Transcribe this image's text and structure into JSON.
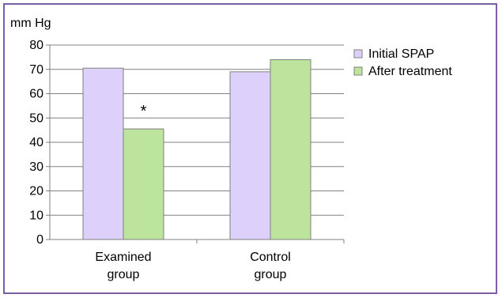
{
  "chart_data": {
    "type": "bar",
    "ylabel": "mm Hg",
    "categories": [
      [
        "Examined",
        "group"
      ],
      [
        "Control",
        "group"
      ]
    ],
    "series": [
      {
        "name": "Initial SPAP",
        "values": [
          70.5,
          69
        ],
        "color": "#ddd0fa"
      },
      {
        "name": "After treatment",
        "values": [
          45.5,
          74
        ],
        "color": "#bde49c"
      }
    ],
    "ylim": [
      0,
      80
    ],
    "yticks": [
      0,
      10,
      20,
      30,
      40,
      50,
      60,
      70,
      80
    ],
    "grid": true,
    "legend": "right",
    "annotations": [
      {
        "text": "*",
        "category": 0,
        "series": 1
      }
    ]
  }
}
